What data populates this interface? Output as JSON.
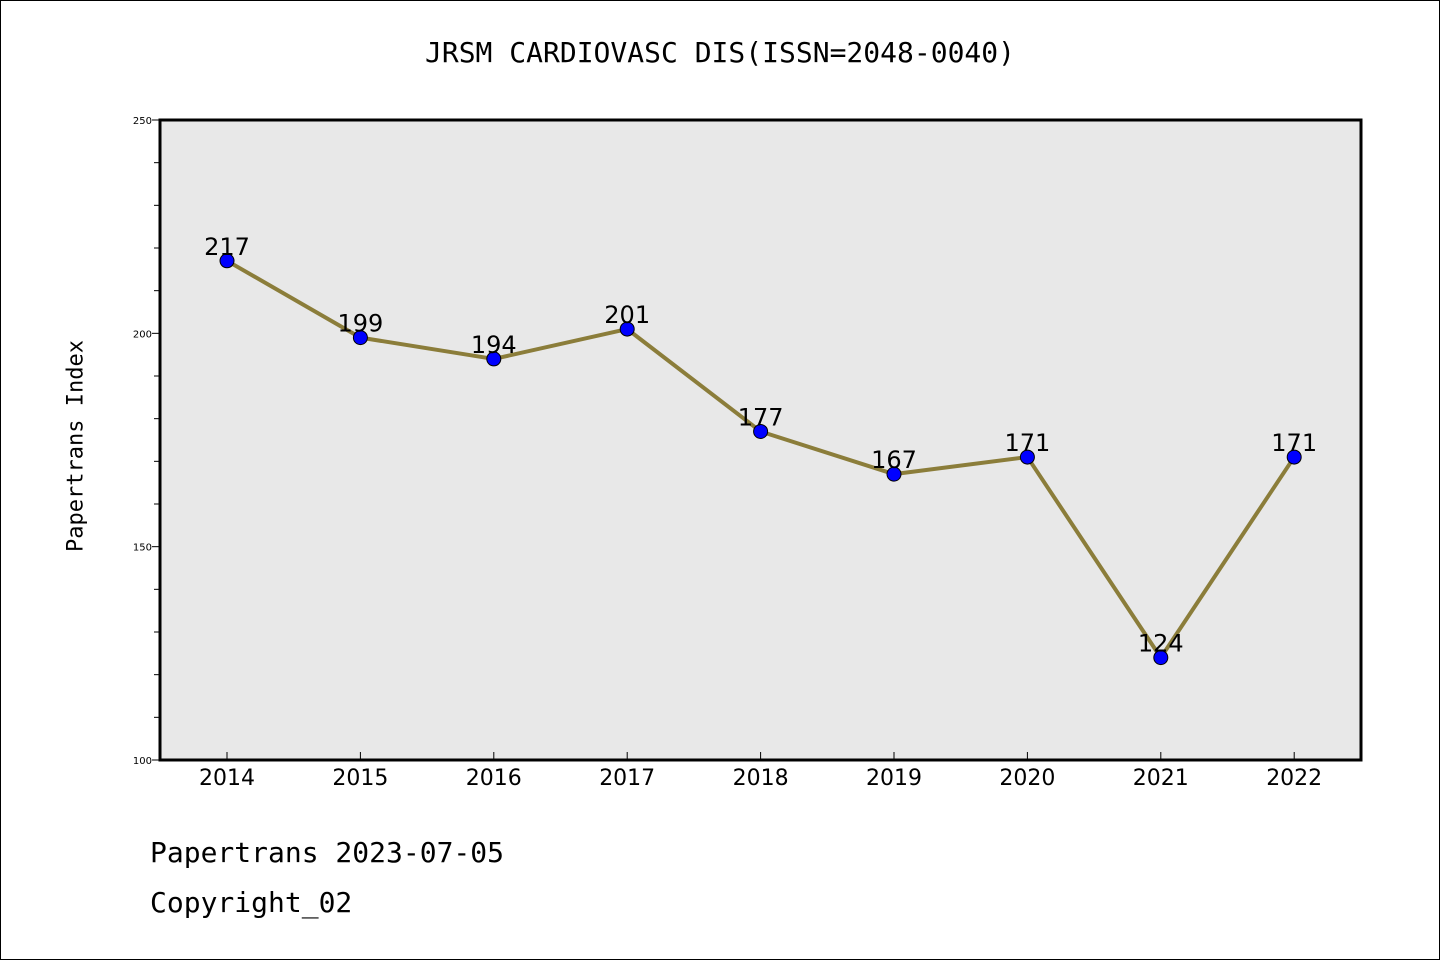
{
  "chart_data": {
    "type": "line",
    "title": "JRSM CARDIOVASC DIS(ISSN=2048-0040)",
    "ylabel": "Papertrans Index",
    "xlabel": "",
    "categories": [
      "2014",
      "2015",
      "2016",
      "2017",
      "2018",
      "2019",
      "2020",
      "2021",
      "2022"
    ],
    "series": [
      {
        "values": [
          217,
          199,
          194,
          201,
          177,
          167,
          171,
          124,
          171
        ]
      }
    ],
    "data_labels": [
      "217",
      "199",
      "194",
      "201",
      "177",
      "167",
      "171",
      "124",
      "171"
    ],
    "ylim": [
      100,
      250
    ],
    "yticks": [
      "100",
      "150",
      "200",
      "250"
    ],
    "grid": false,
    "colors": {
      "line": "#8B7D3A",
      "marker": "#0000FF",
      "plot_background": "#E8E8E8"
    }
  },
  "footer": {
    "line1": "Papertrans 2023-07-05",
    "line2": "Copyright_02"
  }
}
